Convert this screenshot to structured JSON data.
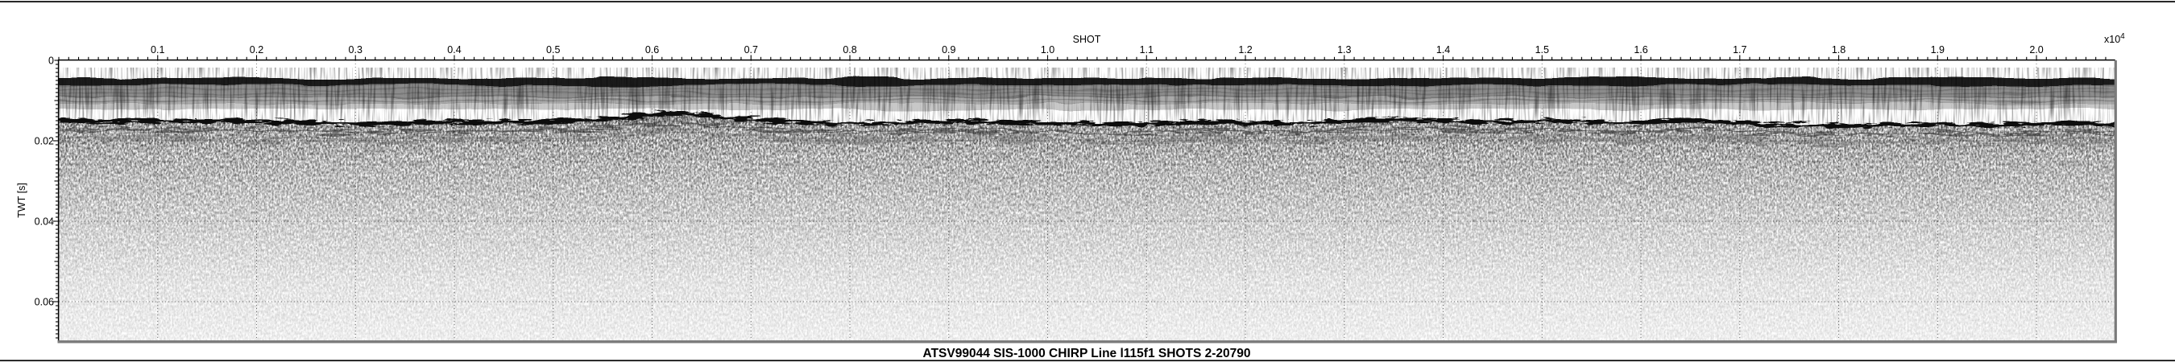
{
  "figure": {
    "page_rule_color": "#000000",
    "background": "#ffffff"
  },
  "chart_data": {
    "type": "heatmap",
    "subtype": "seismic-chirp-subbottom-profile",
    "title": "ATSV99044 SIS-1000 CHIRP Line l115f1 SHOTS 2-20790",
    "xlabel": "SHOT",
    "x_scale_label": "x10",
    "x_scale_exponent": "4",
    "ylabel": "TWT [s]",
    "xlim": [
      0,
      20790
    ],
    "ylim_s": [
      0,
      0.0696
    ],
    "x_tick_values": [
      1000,
      2000,
      3000,
      4000,
      5000,
      6000,
      7000,
      8000,
      9000,
      10000,
      11000,
      12000,
      13000,
      14000,
      15000,
      16000,
      17000,
      18000,
      19000,
      20000
    ],
    "x_tick_labels": [
      "0.1",
      "0.2",
      "0.3",
      "0.4",
      "0.5",
      "0.6",
      "0.7",
      "0.8",
      "0.9",
      "1.0",
      "1.1",
      "1.2",
      "1.3",
      "1.4",
      "1.5",
      "1.6",
      "1.7",
      "1.8",
      "1.9",
      "2.0"
    ],
    "x_minor_tick_step": 100,
    "y_tick_values": [
      0,
      0.02,
      0.04,
      0.06
    ],
    "y_tick_labels": [
      "0",
      "0.02",
      "0.04",
      "0.06"
    ],
    "y_minor_tick_step": 0.001,
    "grid_style": "dotted-at-major-ticks",
    "colors": {
      "grid": "#777777",
      "axis": "#000000",
      "frame_shadow": "#7a7a7a",
      "background": "#ffffff",
      "data_ink": "#0a0a0a"
    },
    "layers": {
      "bands": [
        {
          "name": "outgoing-pulse-band",
          "top_twt_s": 0.0044,
          "bottom_twt_s": 0.0062,
          "shade": "#1a1a1a"
        },
        {
          "name": "reverberation-band-dark",
          "top_twt_s": 0.0062,
          "bottom_twt_s": 0.0092,
          "shade": "#8c8c8c"
        },
        {
          "name": "reverberation-band-mid",
          "top_twt_s": 0.0092,
          "bottom_twt_s": 0.0108,
          "shade": "#a9a9a9"
        },
        {
          "name": "reverberation-band-light",
          "top_twt_s": 0.0108,
          "bottom_twt_s": 0.0122,
          "shade": "#c8c8c8"
        }
      ],
      "main_reflector": {
        "name": "seafloor-sub-bottom-reflector",
        "points": [
          [
            0,
            0.015
          ],
          [
            800,
            0.0152
          ],
          [
            1600,
            0.0149
          ],
          [
            2400,
            0.0154
          ],
          [
            3200,
            0.0158
          ],
          [
            4000,
            0.0152
          ],
          [
            4800,
            0.0155
          ],
          [
            5500,
            0.0148
          ],
          [
            6000,
            0.0134
          ],
          [
            6300,
            0.013
          ],
          [
            6800,
            0.0144
          ],
          [
            7500,
            0.0154
          ],
          [
            8300,
            0.0158
          ],
          [
            9200,
            0.015
          ],
          [
            10000,
            0.0156
          ],
          [
            10900,
            0.016
          ],
          [
            11700,
            0.0152
          ],
          [
            12400,
            0.0158
          ],
          [
            13100,
            0.015
          ],
          [
            13800,
            0.0146
          ],
          [
            14500,
            0.0156
          ],
          [
            15200,
            0.0148
          ],
          [
            15900,
            0.0158
          ],
          [
            16500,
            0.0146
          ],
          [
            17200,
            0.016
          ],
          [
            18000,
            0.0164
          ],
          [
            18800,
            0.0158
          ],
          [
            19600,
            0.0162
          ],
          [
            20300,
            0.0155
          ],
          [
            20790,
            0.016
          ]
        ]
      },
      "echo_offsets_s": [
        0.0022,
        0.0042
      ],
      "noise_spike_shots": [
        5070,
        9560,
        12720,
        13290
      ],
      "speckle_fade_bottom_twt_s": 0.0696
    }
  }
}
